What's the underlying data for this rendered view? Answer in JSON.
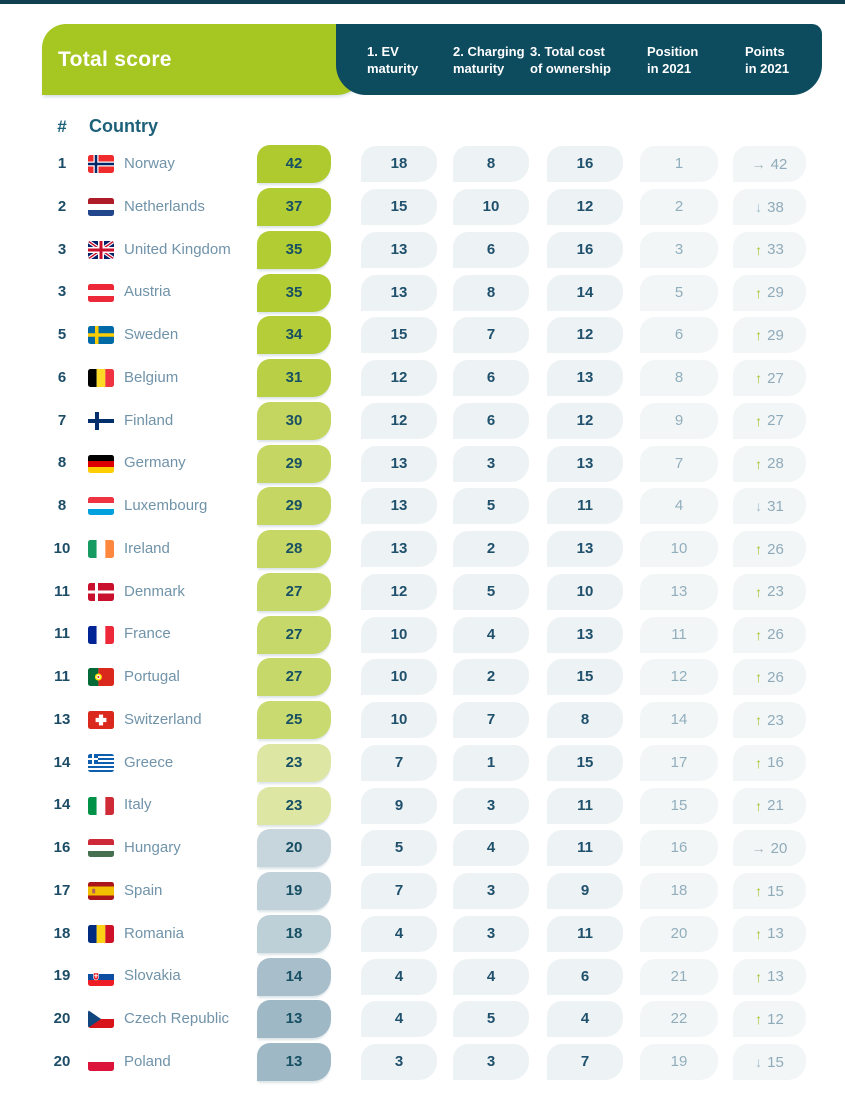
{
  "header": {
    "total_score_label": "Total score",
    "columns": [
      {
        "line1": "1. EV",
        "line2": "maturity"
      },
      {
        "line1": "2. Charging",
        "line2": "maturity"
      },
      {
        "line1": "3. Total cost",
        "line2": "of ownership"
      },
      {
        "line1": "Position",
        "line2": "in 2021"
      },
      {
        "line1": "Points",
        "line2": "in 2021"
      }
    ]
  },
  "table": {
    "rank_header": "#",
    "country_header": "Country",
    "rows": [
      {
        "rank": "1",
        "country": "Norway",
        "flag": "norway",
        "total": 42,
        "pill": "#aeca2e",
        "ev": 18,
        "charging": 8,
        "tco": 16,
        "pos2021": 1,
        "trend": "same",
        "points2021": 42
      },
      {
        "rank": "2",
        "country": "Netherlands",
        "flag": "netherlands",
        "total": 37,
        "pill": "#b2cc33",
        "ev": 15,
        "charging": 10,
        "tco": 12,
        "pos2021": 2,
        "trend": "down",
        "points2021": 38
      },
      {
        "rank": "3",
        "country": "United Kingdom",
        "flag": "uk",
        "total": 35,
        "pill": "#b2cc33",
        "ev": 13,
        "charging": 6,
        "tco": 16,
        "pos2021": 3,
        "trend": "up",
        "points2021": 33
      },
      {
        "rank": "3",
        "country": "Austria",
        "flag": "austria",
        "total": 35,
        "pill": "#b2cc33",
        "ev": 13,
        "charging": 8,
        "tco": 14,
        "pos2021": 5,
        "trend": "up",
        "points2021": 29
      },
      {
        "rank": "5",
        "country": "Sweden",
        "flag": "sweden",
        "total": 34,
        "pill": "#b5cd39",
        "ev": 15,
        "charging": 7,
        "tco": 12,
        "pos2021": 6,
        "trend": "up",
        "points2021": 29
      },
      {
        "rank": "6",
        "country": "Belgium",
        "flag": "belgium",
        "total": 31,
        "pill": "#b9d046",
        "ev": 12,
        "charging": 6,
        "tco": 13,
        "pos2021": 8,
        "trend": "up",
        "points2021": 27
      },
      {
        "rank": "7",
        "country": "Finland",
        "flag": "finland",
        "total": 30,
        "pill": "#c4d65f",
        "ev": 12,
        "charging": 6,
        "tco": 12,
        "pos2021": 9,
        "trend": "up",
        "points2021": 27
      },
      {
        "rank": "8",
        "country": "Germany",
        "flag": "germany",
        "total": 29,
        "pill": "#c5d762",
        "ev": 13,
        "charging": 3,
        "tco": 13,
        "pos2021": 7,
        "trend": "up",
        "points2021": 28
      },
      {
        "rank": "8",
        "country": "Luxembourg",
        "flag": "luxembourg",
        "total": 29,
        "pill": "#c5d762",
        "ev": 13,
        "charging": 5,
        "tco": 11,
        "pos2021": 4,
        "trend": "down",
        "points2021": 31
      },
      {
        "rank": "10",
        "country": "Ireland",
        "flag": "ireland",
        "total": 28,
        "pill": "#c6d765",
        "ev": 13,
        "charging": 2,
        "tco": 13,
        "pos2021": 10,
        "trend": "up",
        "points2021": 26
      },
      {
        "rank": "11",
        "country": "Denmark",
        "flag": "denmark",
        "total": 27,
        "pill": "#c7d86a",
        "ev": 12,
        "charging": 5,
        "tco": 10,
        "pos2021": 13,
        "trend": "up",
        "points2021": 23
      },
      {
        "rank": "11",
        "country": "France",
        "flag": "france",
        "total": 27,
        "pill": "#c7d86a",
        "ev": 10,
        "charging": 4,
        "tco": 13,
        "pos2021": 11,
        "trend": "up",
        "points2021": 26
      },
      {
        "rank": "11",
        "country": "Portugal",
        "flag": "portugal",
        "total": 27,
        "pill": "#c7d86a",
        "ev": 10,
        "charging": 2,
        "tco": 15,
        "pos2021": 12,
        "trend": "up",
        "points2021": 26
      },
      {
        "rank": "13",
        "country": "Switzerland",
        "flag": "switzerland",
        "total": 25,
        "pill": "#c9da70",
        "ev": 10,
        "charging": 7,
        "tco": 8,
        "pos2021": 14,
        "trend": "up",
        "points2021": 23
      },
      {
        "rank": "14",
        "country": "Greece",
        "flag": "greece",
        "total": 23,
        "pill": "#dee6a4",
        "ev": 7,
        "charging": 1,
        "tco": 15,
        "pos2021": 17,
        "trend": "up",
        "points2021": 16
      },
      {
        "rank": "14",
        "country": "Italy",
        "flag": "italy",
        "total": 23,
        "pill": "#dee6a4",
        "ev": 9,
        "charging": 3,
        "tco": 11,
        "pos2021": 15,
        "trend": "up",
        "points2021": 21
      },
      {
        "rank": "16",
        "country": "Hungary",
        "flag": "hungary",
        "total": 20,
        "pill": "#c7d5dc",
        "ev": 5,
        "charging": 4,
        "tco": 11,
        "pos2021": 16,
        "trend": "same",
        "points2021": 20
      },
      {
        "rank": "17",
        "country": "Spain",
        "flag": "spain",
        "total": 19,
        "pill": "#c2d2da",
        "ev": 7,
        "charging": 3,
        "tco": 9,
        "pos2021": 18,
        "trend": "up",
        "points2021": 15
      },
      {
        "rank": "18",
        "country": "Romania",
        "flag": "romania",
        "total": 18,
        "pill": "#bdcfd7",
        "ev": 4,
        "charging": 3,
        "tco": 11,
        "pos2021": 20,
        "trend": "up",
        "points2021": 13
      },
      {
        "rank": "19",
        "country": "Slovakia",
        "flag": "slovakia",
        "total": 14,
        "pill": "#a8bfcb",
        "ev": 4,
        "charging": 4,
        "tco": 6,
        "pos2021": 21,
        "trend": "up",
        "points2021": 13
      },
      {
        "rank": "20",
        "country": "Czech Republic",
        "flag": "czech",
        "total": 13,
        "pill": "#9eb8c5",
        "ev": 4,
        "charging": 5,
        "tco": 4,
        "pos2021": 22,
        "trend": "up",
        "points2021": 12
      },
      {
        "rank": "20",
        "country": "Poland",
        "flag": "poland",
        "total": 13,
        "pill": "#9eb8c5",
        "ev": 3,
        "charging": 3,
        "tco": 7,
        "pos2021": 19,
        "trend": "down",
        "points2021": 15
      }
    ]
  },
  "colors": {
    "top_bar": "#123f4f",
    "header_teal": "#0d4b5f",
    "header_green": "#a6c621",
    "trend_up": "#a4c42a",
    "trend_down": "#9fbecb",
    "trend_same": "#a6b4bb"
  },
  "chart_data": {
    "type": "table",
    "columns": [
      "#",
      "Country",
      "Total score",
      "1. EV maturity",
      "2. Charging maturity",
      "3. Total cost of ownership",
      "Position in 2021",
      "Points in 2021"
    ],
    "rows": [
      [
        "1",
        "Norway",
        42,
        18,
        8,
        16,
        1,
        "→ 42"
      ],
      [
        "2",
        "Netherlands",
        37,
        15,
        10,
        12,
        2,
        "↓ 38"
      ],
      [
        "3",
        "United Kingdom",
        35,
        13,
        6,
        16,
        3,
        "↑ 33"
      ],
      [
        "3",
        "Austria",
        35,
        13,
        8,
        14,
        5,
        "↑ 29"
      ],
      [
        "5",
        "Sweden",
        34,
        15,
        7,
        12,
        6,
        "↑ 29"
      ],
      [
        "6",
        "Belgium",
        31,
        12,
        6,
        13,
        8,
        "↑ 27"
      ],
      [
        "7",
        "Finland",
        30,
        12,
        6,
        12,
        9,
        "↑ 27"
      ],
      [
        "8",
        "Germany",
        29,
        13,
        3,
        13,
        7,
        "↑ 28"
      ],
      [
        "8",
        "Luxembourg",
        29,
        13,
        5,
        11,
        4,
        "↓ 31"
      ],
      [
        "10",
        "Ireland",
        28,
        13,
        2,
        13,
        10,
        "↑ 26"
      ],
      [
        "11",
        "Denmark",
        27,
        12,
        5,
        10,
        13,
        "↑ 23"
      ],
      [
        "11",
        "France",
        27,
        10,
        4,
        13,
        11,
        "↑ 26"
      ],
      [
        "11",
        "Portugal",
        27,
        10,
        2,
        15,
        12,
        "↑ 26"
      ],
      [
        "13",
        "Switzerland",
        25,
        10,
        7,
        8,
        14,
        "↑ 23"
      ],
      [
        "14",
        "Greece",
        23,
        7,
        1,
        15,
        17,
        "↑ 16"
      ],
      [
        "14",
        "Italy",
        23,
        9,
        3,
        11,
        15,
        "↑ 21"
      ],
      [
        "16",
        "Hungary",
        20,
        5,
        4,
        11,
        16,
        "→ 20"
      ],
      [
        "17",
        "Spain",
        19,
        7,
        3,
        9,
        18,
        "↑ 15"
      ],
      [
        "18",
        "Romania",
        18,
        4,
        3,
        11,
        20,
        "↑ 13"
      ],
      [
        "19",
        "Slovakia",
        14,
        4,
        4,
        6,
        21,
        "↑ 13"
      ],
      [
        "20",
        "Czech Republic",
        13,
        4,
        5,
        4,
        22,
        "↑ 12"
      ],
      [
        "20",
        "Poland",
        13,
        3,
        3,
        7,
        19,
        "↓ 15"
      ]
    ]
  }
}
